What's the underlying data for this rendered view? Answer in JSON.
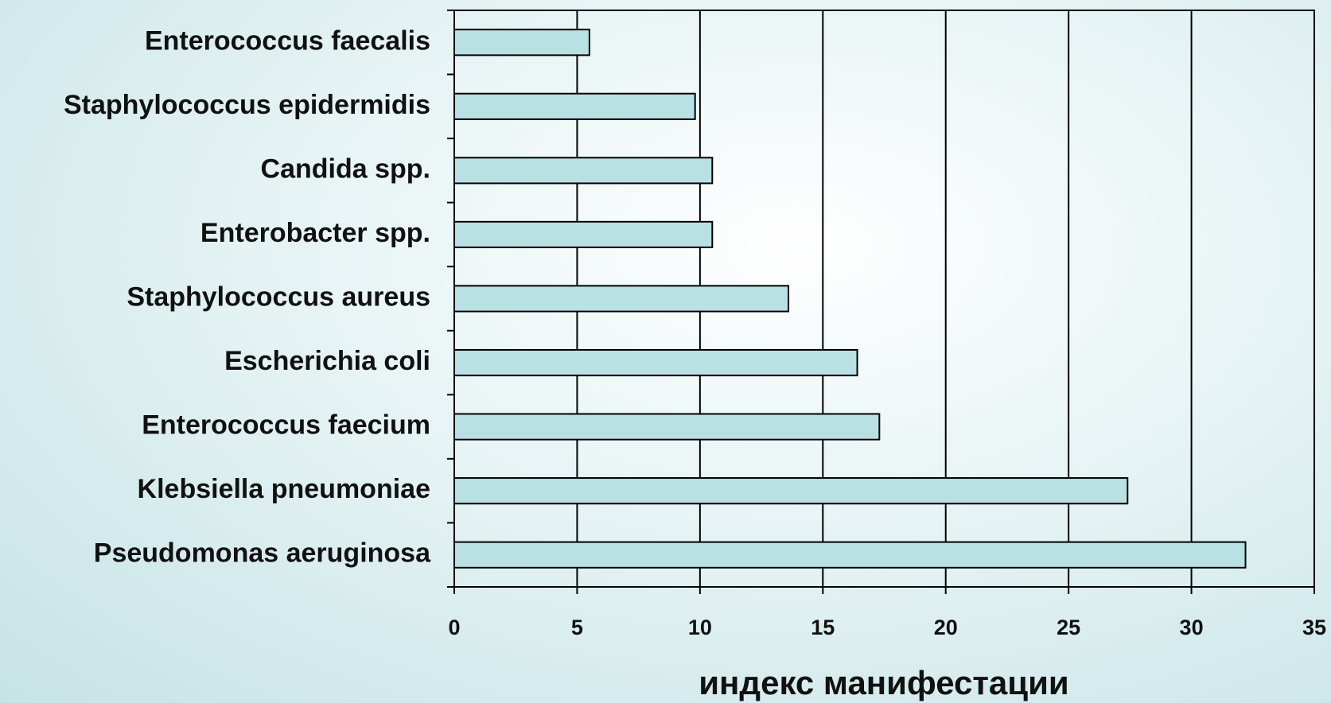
{
  "chart_data": {
    "type": "bar",
    "orientation": "horizontal",
    "categories": [
      "Enterococcus faecalis",
      "Staphylococcus epidermidis",
      "Candida spp.",
      "Enterobacter spp.",
      "Staphylococcus aureus",
      "Escherichia coli",
      "Enterococcus faecium",
      "Klebsiella pneumoniae",
      "Pseudomonas aeruginosa"
    ],
    "values": [
      5.5,
      9.8,
      10.5,
      10.5,
      13.6,
      16.4,
      17.3,
      27.4,
      32.2
    ],
    "color": "#b9e0e3",
    "xlim": [
      0,
      35
    ],
    "xticks": [
      0,
      5,
      10,
      15,
      20,
      25,
      30,
      35
    ],
    "xlabel": "индекс манифестации",
    "grid": true
  }
}
